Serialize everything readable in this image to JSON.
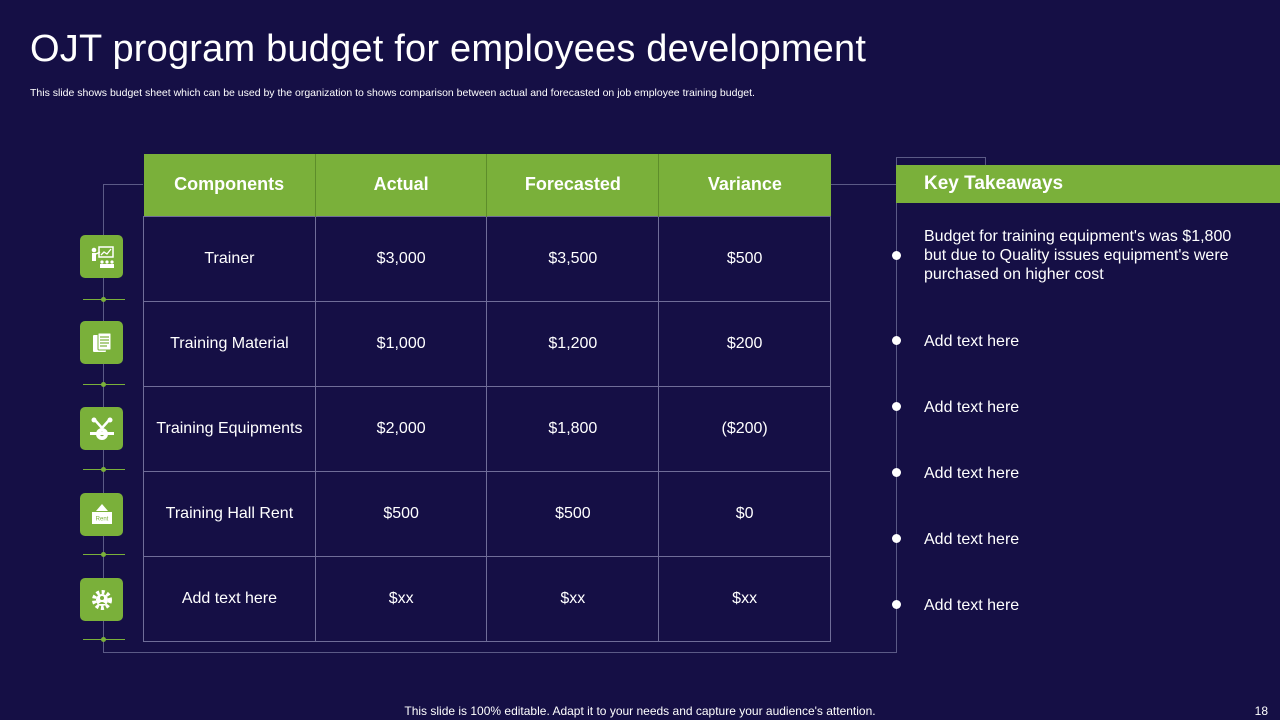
{
  "slide": {
    "title": "OJT program budget for employees development",
    "subtitle": "This slide shows budget sheet which can be used by the organization to shows comparison between actual and forecasted on job employee training budget.",
    "footer": "This slide is 100% editable. Adapt it to your needs and capture your audience's attention.",
    "page_number": "18"
  },
  "table": {
    "headers": [
      "Components",
      "Actual",
      "Forecasted",
      "Variance"
    ],
    "rows": [
      [
        "Trainer",
        "$3,000",
        "$3,500",
        "$500"
      ],
      [
        "Training Material",
        "$1,000",
        "$1,200",
        "$200"
      ],
      [
        "Training Equipments",
        "$2,000",
        "$1,800",
        "($200)"
      ],
      [
        "Training Hall Rent",
        "$500",
        "$500",
        "$0"
      ],
      [
        "Add text here",
        "$xx",
        "$xx",
        "$xx"
      ]
    ]
  },
  "icons": [
    "trainer-presentation-icon",
    "documents-icon",
    "tools-gear-icon",
    "rent-sign-icon",
    "settings-gear-icon"
  ],
  "rent_icon_text": "Rent",
  "takeaways": {
    "heading": "Key Takeaways",
    "items": [
      "Budget for training equipment's was $1,800 but due to Quality issues equipment's were purchased on higher cost",
      "Add text here",
      "Add text here",
      "Add text here",
      "Add text here",
      "Add text here"
    ]
  },
  "colors": {
    "background": "#150f45",
    "accent_green": "#7ab03a",
    "text": "#ffffff"
  }
}
